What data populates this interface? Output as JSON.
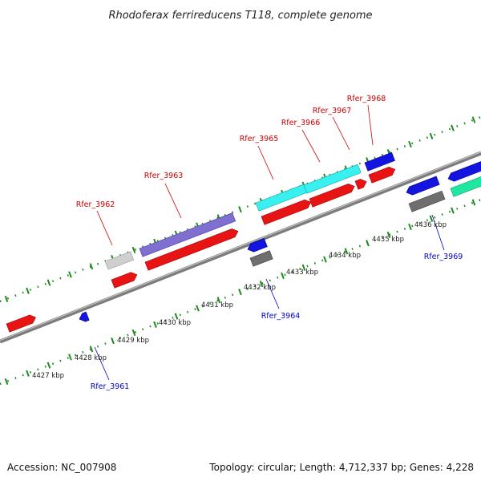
{
  "title": "Rhodoferax ferrireducens T118, complete genome",
  "footer": {
    "accession": "Accession: NC_007908",
    "summary": "Topology: circular; Length: 4,712,337 bp; Genes: 4,228"
  },
  "colors": {
    "forward_label": "#cc0000",
    "reverse_label": "#0000cc",
    "backbone": "#888888",
    "ticks": "#1f8a1f"
  },
  "scale": {
    "tick_labels": [
      "4427 kbp",
      "4428 kbp",
      "4429 kbp",
      "4430 kbp",
      "4431 kbp",
      "4432 kbp",
      "4433 kbp",
      "4434 kbp",
      "4435 kbp",
      "4436 kbp"
    ]
  },
  "genes": [
    {
      "label": "Rfer_3961",
      "strand": "reverse"
    },
    {
      "label": "Rfer_3962",
      "strand": "forward"
    },
    {
      "label": "Rfer_3963",
      "strand": "forward"
    },
    {
      "label": "Rfer_3964",
      "strand": "reverse"
    },
    {
      "label": "Rfer_3965",
      "strand": "forward"
    },
    {
      "label": "Rfer_3966",
      "strand": "forward"
    },
    {
      "label": "Rfer_3967",
      "strand": "forward"
    },
    {
      "label": "Rfer_3968",
      "strand": "forward"
    },
    {
      "label": "Rfer_3969",
      "strand": "reverse"
    }
  ]
}
